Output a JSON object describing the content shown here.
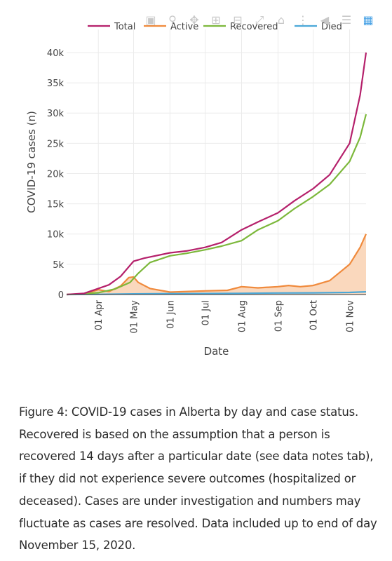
{
  "modebar": {
    "icons": [
      "camera-icon",
      "zoom-icon",
      "pan-icon",
      "zoom-in-icon",
      "zoom-out-icon",
      "autoscale-icon",
      "reset-axes-icon",
      "spike-lines-icon",
      "hover-closest-icon",
      "hover-compare-icon",
      "plotly-logo-icon"
    ]
  },
  "caption": {
    "text": "Figure 4: COVID-19 cases in Alberta by day and case status. Recovered is based on the assumption that a person is recovered 14 days after a particular date (see data notes tab), if they did not experience severe outcomes (hospitalized or deceased). Cases are under investigation and numbers may fluctuate as cases are resolved. Data included up to end of day November 15, 2020."
  },
  "chart_data": {
    "type": "line",
    "title": "",
    "xlabel": "Date",
    "ylabel": "COVID-19 cases (n)",
    "x_tick_labels": [
      "01 Apr",
      "01 May",
      "01 Jun",
      "01 Jul",
      "01 Aug",
      "01 Sep",
      "01 Oct",
      "01 Nov"
    ],
    "y_tick_labels": [
      "0",
      "5k",
      "10k",
      "15k",
      "20k",
      "25k",
      "30k",
      "35k",
      "40k"
    ],
    "ylim": [
      0,
      41500
    ],
    "xlim": [
      "2020-03-05",
      "2020-11-15"
    ],
    "grid": true,
    "legend_position": "top",
    "legend": [
      "Total",
      "Active",
      "Recovered",
      "Died"
    ],
    "colors": {
      "Total": "#b5206b",
      "Active": "#f08a3c",
      "Recovered": "#7cb83b",
      "Died": "#4aa8d8",
      "active_fill": "#fad8bd"
    },
    "series": [
      {
        "name": "Total",
        "x": [
          "2020-03-05",
          "2020-03-20",
          "2020-04-01",
          "2020-04-10",
          "2020-04-20",
          "2020-05-01",
          "2020-05-10",
          "2020-06-01",
          "2020-06-15",
          "2020-07-01",
          "2020-07-15",
          "2020-08-01",
          "2020-08-15",
          "2020-09-01",
          "2020-09-15",
          "2020-10-01",
          "2020-10-15",
          "2020-11-01",
          "2020-11-10",
          "2020-11-15"
        ],
        "y": [
          0,
          200,
          1000,
          1600,
          3000,
          5500,
          6000,
          6900,
          7200,
          7800,
          8600,
          10700,
          12000,
          13500,
          15500,
          17500,
          19800,
          25000,
          33000,
          40000
        ]
      },
      {
        "name": "Active",
        "x": [
          "2020-03-05",
          "2020-03-20",
          "2020-04-01",
          "2020-04-10",
          "2020-04-20",
          "2020-04-27",
          "2020-05-01",
          "2020-05-05",
          "2020-05-15",
          "2020-06-01",
          "2020-07-01",
          "2020-07-20",
          "2020-08-01",
          "2020-08-15",
          "2020-09-01",
          "2020-09-10",
          "2020-09-20",
          "2020-10-01",
          "2020-10-15",
          "2020-11-01",
          "2020-11-10",
          "2020-11-15"
        ],
        "y": [
          0,
          100,
          800,
          500,
          1400,
          2800,
          2900,
          2000,
          1000,
          400,
          600,
          700,
          1300,
          1100,
          1300,
          1500,
          1300,
          1500,
          2300,
          5000,
          7800,
          10000
        ]
      },
      {
        "name": "Recovered",
        "x": [
          "2020-03-05",
          "2020-03-20",
          "2020-04-01",
          "2020-04-15",
          "2020-04-28",
          "2020-05-05",
          "2020-05-15",
          "2020-06-01",
          "2020-06-15",
          "2020-07-01",
          "2020-07-15",
          "2020-08-01",
          "2020-08-15",
          "2020-09-01",
          "2020-09-15",
          "2020-10-01",
          "2020-10-15",
          "2020-11-01",
          "2020-11-10",
          "2020-11-15"
        ],
        "y": [
          0,
          100,
          300,
          900,
          2000,
          3500,
          5300,
          6400,
          6800,
          7400,
          8000,
          8900,
          10700,
          12200,
          14200,
          16200,
          18200,
          22000,
          26000,
          29800
        ]
      },
      {
        "name": "Died",
        "x": [
          "2020-03-05",
          "2020-04-01",
          "2020-05-01",
          "2020-06-01",
          "2020-07-01",
          "2020-08-01",
          "2020-09-01",
          "2020-10-01",
          "2020-11-01",
          "2020-11-15"
        ],
        "y": [
          0,
          30,
          100,
          150,
          160,
          200,
          250,
          280,
          350,
          450
        ]
      }
    ]
  }
}
